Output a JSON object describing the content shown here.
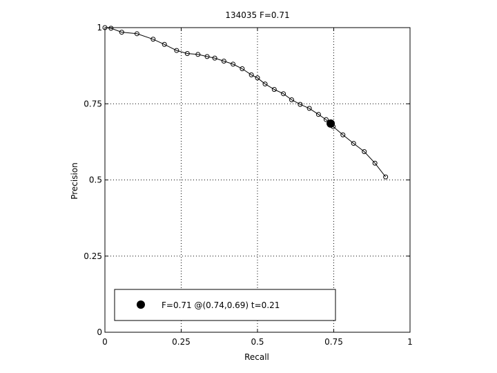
{
  "chart_data": {
    "type": "line",
    "title": "134035 F=0.71",
    "xlabel": "Recall",
    "ylabel": "Precision",
    "xlim": [
      0,
      1
    ],
    "ylim": [
      0,
      1
    ],
    "xticks": [
      0,
      0.25,
      0.5,
      0.75,
      1
    ],
    "yticks": [
      0,
      0.25,
      0.5,
      0.75,
      1
    ],
    "xtick_labels": [
      "0",
      "0.25",
      "0.5",
      "0.75",
      "1"
    ],
    "ytick_labels": [
      "0",
      "0.25",
      "0.5",
      "0.75",
      "1"
    ],
    "grid": true,
    "series": [
      {
        "x": [
          0.0,
          0.02,
          0.055,
          0.105,
          0.158,
          0.195,
          0.235,
          0.27,
          0.305,
          0.335,
          0.36,
          0.39,
          0.42,
          0.45,
          0.48,
          0.5,
          0.525,
          0.555,
          0.585,
          0.612,
          0.64,
          0.67,
          0.7,
          0.725,
          0.748,
          0.78,
          0.815,
          0.85,
          0.885,
          0.92
        ],
        "y": [
          1.0,
          0.998,
          0.985,
          0.98,
          0.962,
          0.945,
          0.925,
          0.915,
          0.912,
          0.905,
          0.9,
          0.89,
          0.88,
          0.865,
          0.845,
          0.835,
          0.815,
          0.797,
          0.783,
          0.763,
          0.748,
          0.735,
          0.715,
          0.698,
          0.675,
          0.648,
          0.62,
          0.593,
          0.555,
          0.51
        ]
      }
    ],
    "highlight_point": {
      "x": 0.74,
      "y": 0.685
    },
    "legend": {
      "label": "F=0.71 @(0.74,0.69) t=0.21",
      "placement": "bottom-left"
    }
  }
}
